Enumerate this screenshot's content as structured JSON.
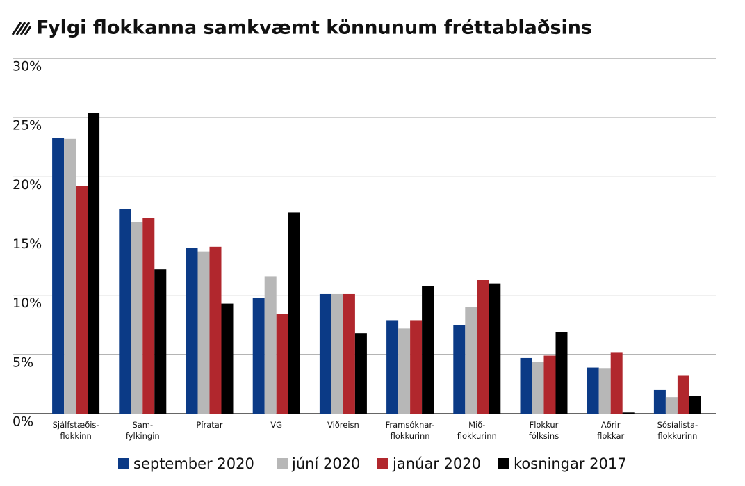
{
  "chart_data": {
    "type": "bar",
    "title": "Fylgi flokkanna samkvæmt könnunum fréttablaðsins",
    "categories": [
      "Sjálfstæðis-\nflokkinn",
      "Sam-\nfylkingin",
      "Píratar",
      "VG",
      "Viðreisn",
      "Framsóknar-\nflokkurinn",
      "Mið-\nflokkurinn",
      "Flokkur\nfólksins",
      "Aðrir\nflokkar",
      "Sósíalista-\nflokkurinn"
    ],
    "series": [
      {
        "name": "september 2020",
        "color": "#0b3a86",
        "values": [
          23.3,
          17.3,
          14.0,
          9.8,
          10.1,
          7.9,
          7.5,
          4.7,
          3.9,
          2.0
        ]
      },
      {
        "name": "júní 2020",
        "color": "#b7b7b7",
        "values": [
          23.2,
          16.2,
          13.7,
          11.6,
          10.1,
          7.2,
          9.0,
          4.4,
          3.8,
          1.4
        ]
      },
      {
        "name": "janúar 2020",
        "color": "#b1272d",
        "values": [
          19.2,
          16.5,
          14.1,
          8.4,
          10.1,
          7.9,
          11.3,
          4.9,
          5.2,
          3.2
        ]
      },
      {
        "name": "kosningar 2017",
        "color": "#000000",
        "values": [
          25.4,
          12.2,
          9.3,
          17.0,
          6.8,
          10.8,
          11.0,
          6.9,
          0.1,
          1.5
        ]
      }
    ],
    "ylim": [
      0,
      30
    ],
    "yticks": [
      {
        "value": 0,
        "label": "0%"
      },
      {
        "value": 5,
        "label": "5%"
      },
      {
        "value": 10,
        "label": "10%"
      },
      {
        "value": 15,
        "label": "15%"
      },
      {
        "value": 20,
        "label": "20%"
      },
      {
        "value": 25,
        "label": "25%"
      },
      {
        "value": 30,
        "label": "30%"
      }
    ],
    "grid": true
  }
}
